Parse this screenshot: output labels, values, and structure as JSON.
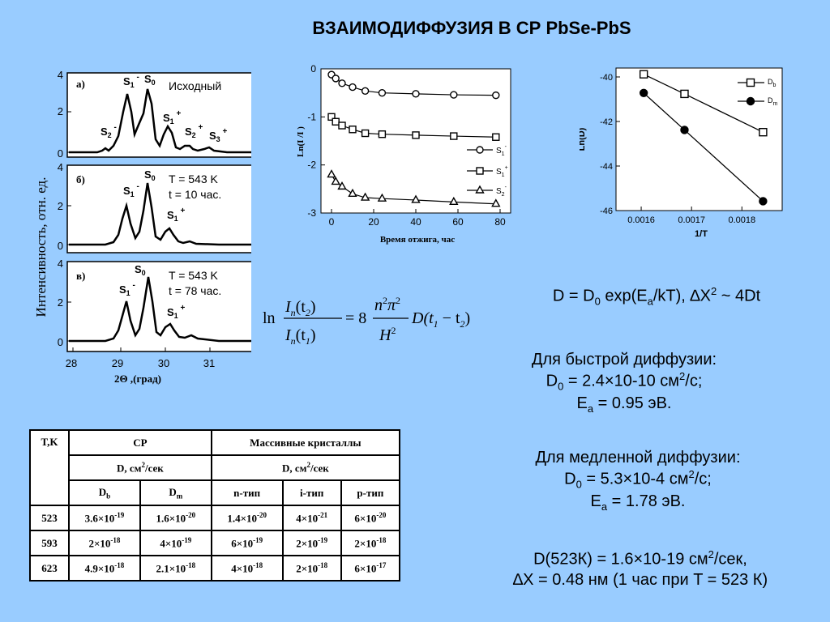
{
  "slide": {
    "title": "ВЗАИМОДИФФУЗИЯ В СР PbSe-PbS"
  },
  "xrd": {
    "ylabel": "Интенсивность, отн. ед.",
    "xlabel": "2Θ ,(град)",
    "x_ticks": [
      "28",
      "29",
      "30",
      "31"
    ],
    "panels": [
      {
        "label": "а)",
        "note": "Исходный",
        "note2": "",
        "y_ticks": [
          "4",
          "2",
          "0"
        ],
        "peaks": [
          "S1-",
          "S0",
          "S1+",
          "S2-",
          "S2+",
          "S3+"
        ]
      },
      {
        "label": "б)",
        "note": "T = 543 K",
        "note2": "t = 10 час.",
        "y_ticks": [
          "4",
          "2",
          "0"
        ],
        "peaks": [
          "S1-",
          "S0",
          "S1+"
        ]
      },
      {
        "label": "в)",
        "note": "T = 543 K",
        "note2": "t = 78 час.",
        "y_ticks": [
          "4",
          "2",
          "0"
        ],
        "peaks": [
          "S1-",
          "S0",
          "S1+"
        ]
      }
    ]
  },
  "chart_data": [
    {
      "type": "line",
      "title": "",
      "xlabel": "Время отжига, час",
      "ylabel": "Ln(I /I )",
      "ylabel_sub1": "n",
      "ylabel_sub2": "o",
      "xlim": [
        -5,
        85
      ],
      "ylim": [
        -3,
        0
      ],
      "x_ticks": [
        "0",
        "20",
        "40",
        "60",
        "80"
      ],
      "y_ticks": [
        "0",
        "-1",
        "-2",
        "-3"
      ],
      "legend_position": "bottom-right",
      "series": [
        {
          "name": "S1-",
          "marker": "circle",
          "x": [
            0,
            2,
            5,
            10,
            16,
            24,
            40,
            58,
            78
          ],
          "y": [
            -0.12,
            -0.2,
            -0.3,
            -0.38,
            -0.46,
            -0.5,
            -0.52,
            -0.54,
            -0.55
          ]
        },
        {
          "name": "S1+",
          "marker": "square",
          "x": [
            0,
            2,
            5,
            10,
            16,
            24,
            40,
            58,
            78
          ],
          "y": [
            -1.0,
            -1.1,
            -1.18,
            -1.26,
            -1.34,
            -1.36,
            -1.38,
            -1.4,
            -1.42
          ]
        },
        {
          "name": "S2-",
          "marker": "triangle",
          "x": [
            0,
            2,
            5,
            10,
            16,
            24,
            40,
            58,
            78
          ],
          "y": [
            -2.2,
            -2.35,
            -2.45,
            -2.6,
            -2.68,
            -2.7,
            -2.73,
            -2.77,
            -2.81
          ]
        }
      ]
    },
    {
      "type": "line",
      "title": "",
      "xlabel": "1/T",
      "ylabel": "Ln(D)",
      "xlim": [
        0.00155,
        0.00188
      ],
      "ylim": [
        -46,
        -39.6
      ],
      "x_ticks": [
        "0.0016",
        "0.0017",
        "0.0018"
      ],
      "y_ticks": [
        "-40",
        "-42",
        "-44",
        "-46"
      ],
      "legend_position": "top-right",
      "series": [
        {
          "name": "Db",
          "marker": "square",
          "x": [
            0.001605,
            0.001686,
            0.001842
          ],
          "y": [
            -39.88,
            -40.76,
            -42.48
          ]
        },
        {
          "name": "Dm",
          "marker": "circle",
          "x": [
            0.001605,
            0.001686,
            0.001842
          ],
          "y": [
            -40.72,
            -42.38,
            -45.58
          ]
        }
      ]
    }
  ],
  "formula": {
    "ln": "ln",
    "num_I": "I",
    "sub_n": "n",
    "t2": "(t",
    "t2_sub": "2",
    "close": ")",
    "eq": "= 8",
    "n": "n",
    "pi": "π",
    "sup2": "2",
    "H": "H",
    "D": "D(t",
    "t1_sub": "1",
    "minus": " − t",
    "t1": "(t",
    "t1_sub2": "1"
  },
  "text": {
    "eq_D": "D = D",
    "eq_D0_sub": "0",
    "eq_exp": " exp(E",
    "eq_a_sub": "a",
    "eq_kt": "/kT),  ∆X",
    "eq_sup2": "2",
    "eq_tail": " ~ 4Dt",
    "fast_title": "Для быстрой диффузии:",
    "fast_d0_a": "D",
    "fast_d0_sub": "0",
    "fast_d0_b": " = 2.4×10-10 см",
    "fast_d0_sup": "2",
    "fast_d0_c": "/с;",
    "fast_ea_a": "E",
    "fast_ea_sub": "a",
    "fast_ea_b": " = 0.95 эВ.",
    "slow_title": "Для медленной диффузии:",
    "slow_d0_a": "D",
    "slow_d0_sub": "0",
    "slow_d0_b": " = 5.3×10-4 см",
    "slow_d0_sup": "2",
    "slow_d0_c": "/с;",
    "slow_ea_a": "E",
    "slow_ea_sub": "a",
    "slow_ea_b": " = 1.78 эВ.",
    "d523_a": "D(523К) = 1.6×10-19 см",
    "d523_sup": "2",
    "d523_b": "/сек,",
    "dx": "∆X = 0.48 нм  (1 час при T = 523 К)"
  },
  "table": {
    "h_t": "T,K",
    "h_sr": "CP",
    "h_bulk": "Массивные кристаллы",
    "h_d_sr": "D, см",
    "h_d_bulk": "D, см",
    "h_sup2": "2",
    "h_per": "/сек",
    "h_db": "D",
    "h_db_sub": "b",
    "h_dm": "D",
    "h_dm_sub": "m",
    "h_n": "n-тип",
    "h_i": "i-тип",
    "h_p": "p-тип",
    "rows": [
      {
        "t": "523",
        "db": "3.6×10",
        "db_e": "-19",
        "dm": "1.6×10",
        "dm_e": "-20",
        "n": "1.4×10",
        "n_e": "-20",
        "i": "4×10",
        "i_e": "-21",
        "p": "6×10",
        "p_e": "-20"
      },
      {
        "t": "593",
        "db": "2×10",
        "db_e": "-18",
        "dm": "4×10",
        "dm_e": "-19",
        "n": "6×10",
        "n_e": "-19",
        "i": "2×10",
        "i_e": "-19",
        "p": "2×10",
        "p_e": "-18"
      },
      {
        "t": "623",
        "db": "4.9×10",
        "db_e": "-18",
        "dm": "2.1×10",
        "dm_e": "-18",
        "n": "4×10",
        "n_e": "-18",
        "i": "2×10",
        "i_e": "-18",
        "p": "6×10",
        "p_e": "-17"
      }
    ]
  }
}
